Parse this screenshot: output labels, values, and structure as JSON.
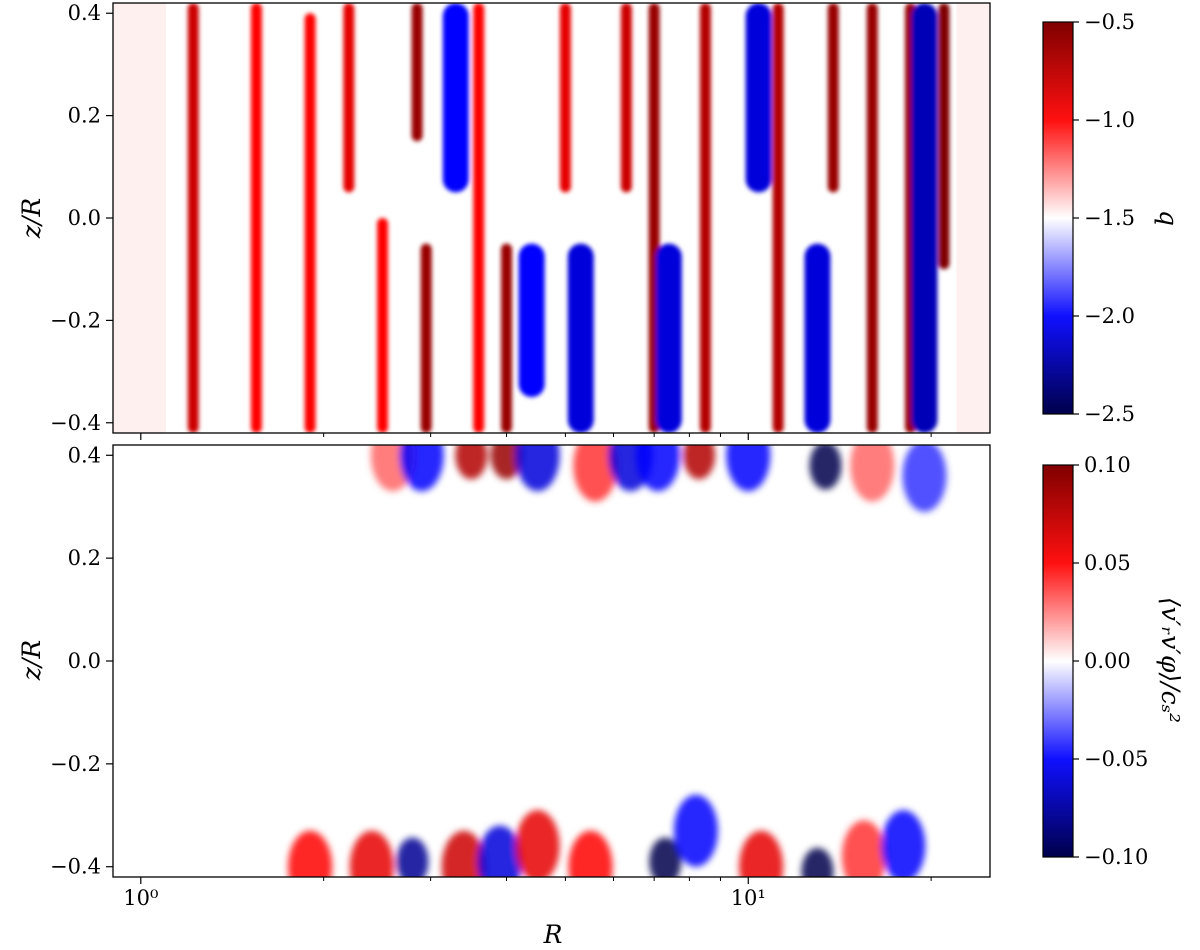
{
  "chart_data": [
    {
      "type": "heatmap",
      "panel": "top",
      "xscale": "log",
      "xlim": [
        0.9,
        25
      ],
      "ylim": [
        -0.42,
        0.42
      ],
      "yticks": [
        0.4,
        0.2,
        0.0,
        -0.2,
        -0.4
      ],
      "ytick_labels": [
        "0.4",
        "0.2",
        "0.0",
        "−0.2",
        "−0.4"
      ],
      "ylabel": "z/R",
      "xlabel": "",
      "colormap": "seismic",
      "colorbar": {
        "label": "q",
        "range": [
          -2.5,
          -0.5
        ],
        "ticks": [
          -0.5,
          -1.0,
          -1.5,
          -2.0,
          -2.5
        ],
        "tick_labels": [
          "−0.5",
          "−1.0",
          "−1.5",
          "−2.0",
          "−2.5"
        ]
      },
      "background_value": -1.5,
      "field_extent_R": [
        1.1,
        22
      ],
      "features": [
        {
          "R": 1.22,
          "z_range": [
            -0.42,
            0.42
          ],
          "value": -0.8
        },
        {
          "R": 1.55,
          "z_range": [
            -0.42,
            0.42
          ],
          "value": -1.0
        },
        {
          "R": 1.9,
          "z_range": [
            -0.42,
            0.4
          ],
          "value": -1.0
        },
        {
          "R": 2.2,
          "z_range": [
            0.05,
            0.42
          ],
          "value": -0.9
        },
        {
          "R": 2.5,
          "z_range": [
            -0.42,
            0.0
          ],
          "value": -1.0
        },
        {
          "R": 2.85,
          "z_range": [
            0.15,
            0.42
          ],
          "value": -0.6
        },
        {
          "R": 2.95,
          "z_range": [
            -0.42,
            -0.05
          ],
          "value": -0.6
        },
        {
          "R": 3.3,
          "z_range": [
            0.05,
            0.42
          ],
          "value": -2.0
        },
        {
          "R": 3.6,
          "z_range": [
            -0.42,
            0.42
          ],
          "value": -1.0
        },
        {
          "R": 4.0,
          "z_range": [
            -0.42,
            -0.05
          ],
          "value": -0.6
        },
        {
          "R": 4.4,
          "z_range": [
            -0.35,
            -0.05
          ],
          "value": -2.0
        },
        {
          "R": 5.0,
          "z_range": [
            0.05,
            0.42
          ],
          "value": -0.9
        },
        {
          "R": 5.3,
          "z_range": [
            -0.42,
            -0.05
          ],
          "value": -2.1
        },
        {
          "R": 6.3,
          "z_range": [
            0.05,
            0.42
          ],
          "value": -0.8
        },
        {
          "R": 7.0,
          "z_range": [
            -0.42,
            0.42
          ],
          "value": -0.6
        },
        {
          "R": 7.4,
          "z_range": [
            -0.42,
            -0.05
          ],
          "value": -2.1
        },
        {
          "R": 8.5,
          "z_range": [
            -0.42,
            0.42
          ],
          "value": -0.7
        },
        {
          "R": 10.4,
          "z_range": [
            0.05,
            0.42
          ],
          "value": -2.1
        },
        {
          "R": 11.2,
          "z_range": [
            -0.42,
            0.42
          ],
          "value": -0.7
        },
        {
          "R": 13.0,
          "z_range": [
            -0.42,
            -0.05
          ],
          "value": -2.1
        },
        {
          "R": 13.8,
          "z_range": [
            0.05,
            0.42
          ],
          "value": -0.6
        },
        {
          "R": 16.0,
          "z_range": [
            -0.42,
            0.42
          ],
          "value": -0.6
        },
        {
          "R": 18.5,
          "z_range": [
            -0.42,
            0.42
          ],
          "value": -0.6
        },
        {
          "R": 19.5,
          "z_range": [
            -0.42,
            0.42
          ],
          "value": -2.2
        },
        {
          "R": 21.0,
          "z_range": [
            -0.1,
            0.42
          ],
          "value": -0.5
        }
      ]
    },
    {
      "type": "heatmap",
      "panel": "bottom",
      "xscale": "log",
      "xlim": [
        0.9,
        25
      ],
      "xticks": [
        1,
        10
      ],
      "xtick_labels": [
        "10⁰",
        "10¹"
      ],
      "ylim": [
        -0.42,
        0.42
      ],
      "yticks": [
        0.4,
        0.2,
        0.0,
        -0.2,
        -0.4
      ],
      "ytick_labels": [
        "0.4",
        "0.2",
        "0.0",
        "−0.2",
        "−0.4"
      ],
      "ylabel": "z/R",
      "xlabel": "R",
      "colormap": "seismic",
      "colorbar": {
        "label": "⟨v′ᵣv′φ⟩/cₛ²",
        "range": [
          -0.1,
          0.1
        ],
        "ticks": [
          0.1,
          0.05,
          0.0,
          -0.05,
          -0.1
        ],
        "tick_labels": [
          "0.10",
          "0.05",
          "0.00",
          "−0.05",
          "−0.10"
        ]
      },
      "background_value": 0.0,
      "features": [
        {
          "R": 2.6,
          "z": 0.4,
          "value": 0.03
        },
        {
          "R": 2.9,
          "z": 0.4,
          "value": -0.05
        },
        {
          "R": 3.5,
          "z": 0.4,
          "value": 0.08
        },
        {
          "R": 4.0,
          "z": 0.4,
          "value": 0.09
        },
        {
          "R": 4.5,
          "z": 0.4,
          "value": -0.06
        },
        {
          "R": 5.6,
          "z": 0.38,
          "value": 0.04
        },
        {
          "R": 6.4,
          "z": 0.4,
          "value": -0.06
        },
        {
          "R": 7.1,
          "z": 0.4,
          "value": -0.05
        },
        {
          "R": 8.3,
          "z": 0.4,
          "value": 0.08
        },
        {
          "R": 10.0,
          "z": 0.4,
          "value": -0.05
        },
        {
          "R": 13.4,
          "z": 0.38,
          "value": -0.1
        },
        {
          "R": 16.0,
          "z": 0.38,
          "value": 0.03
        },
        {
          "R": 19.5,
          "z": 0.36,
          "value": -0.04
        },
        {
          "R": 1.9,
          "z": -0.4,
          "value": 0.05
        },
        {
          "R": 2.4,
          "z": -0.4,
          "value": 0.06
        },
        {
          "R": 2.8,
          "z": -0.39,
          "value": -0.08
        },
        {
          "R": 3.4,
          "z": -0.4,
          "value": 0.07
        },
        {
          "R": 3.9,
          "z": -0.39,
          "value": -0.06
        },
        {
          "R": 4.5,
          "z": -0.36,
          "value": 0.06
        },
        {
          "R": 5.5,
          "z": -0.4,
          "value": 0.05
        },
        {
          "R": 7.3,
          "z": -0.39,
          "value": -0.1
        },
        {
          "R": 8.2,
          "z": -0.33,
          "value": -0.05
        },
        {
          "R": 10.5,
          "z": -0.4,
          "value": 0.06
        },
        {
          "R": 13.0,
          "z": -0.41,
          "value": -0.1
        },
        {
          "R": 15.5,
          "z": -0.38,
          "value": 0.04
        },
        {
          "R": 18.0,
          "z": -0.36,
          "value": -0.05
        }
      ]
    }
  ]
}
